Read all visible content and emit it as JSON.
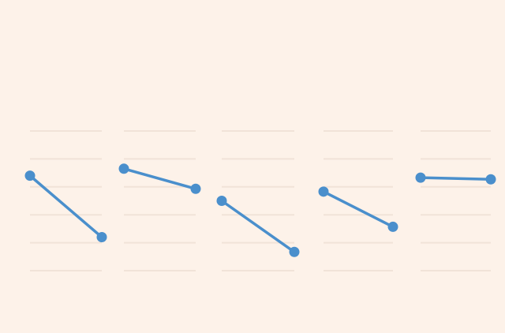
{
  "chart_data": {
    "type": "line",
    "title": "",
    "xlabel": "",
    "ylabel": "",
    "ylim": [
      0,
      5
    ],
    "grid": true,
    "panels": [
      {
        "values": [
          3.4,
          1.2
        ]
      },
      {
        "values": [
          3.65,
          2.93
        ]
      },
      {
        "values": [
          2.5,
          0.67
        ]
      },
      {
        "values": [
          2.83,
          1.57
        ]
      },
      {
        "values": [
          3.33,
          3.27
        ]
      }
    ]
  },
  "colors": {
    "background": "#fdf2e9",
    "gridline": "#f1e3d8",
    "series": "#4a8fcc"
  }
}
